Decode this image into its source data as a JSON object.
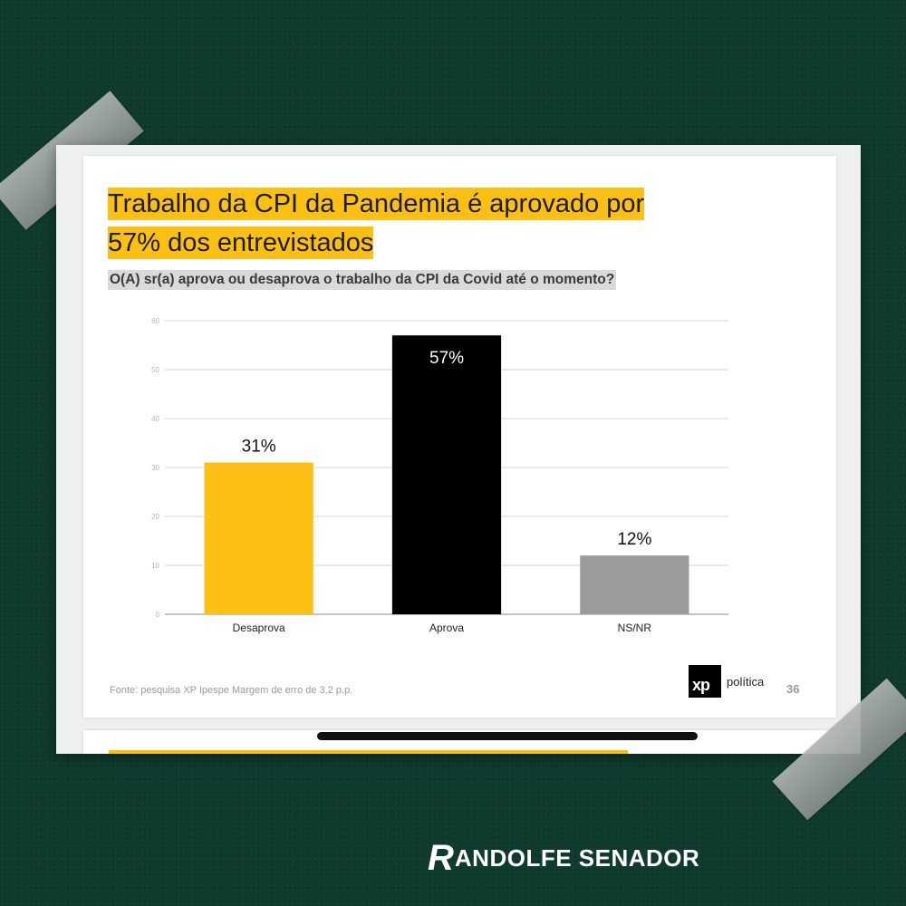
{
  "slide": {
    "title": "Trabalho da CPI da Pandemia é aprovado por 57% dos entrevistados",
    "question": "O(A) sr(a) aprova ou desaprova o trabalho da CPI da Covid até o momento?",
    "source": "Fonte: pesquisa XP Ipespe Margem de erro de 3,2 p.p.",
    "brand_mark": "xp",
    "brand_name": "política",
    "page_number": "36"
  },
  "signature": {
    "initial": "R",
    "text": "ANDOLFE SENADOR"
  },
  "colors": {
    "background": "#0f3a2e",
    "highlight": "#fcbf13",
    "aprova": "#000000",
    "nsnr": "#9b9b9b"
  },
  "chart_data": {
    "type": "bar",
    "categories": [
      "Desaprova",
      "Aprova",
      "NS/NR"
    ],
    "values": [
      31,
      57,
      12
    ],
    "value_labels": [
      "31%",
      "57%",
      "12%"
    ],
    "colors": [
      "#fcbf13",
      "#000000",
      "#9b9b9b"
    ],
    "ylim": [
      0,
      60
    ],
    "yticks": [
      0,
      10,
      20,
      30,
      40,
      50,
      60
    ],
    "grid": true,
    "title": "",
    "xlabel": "",
    "ylabel": ""
  }
}
